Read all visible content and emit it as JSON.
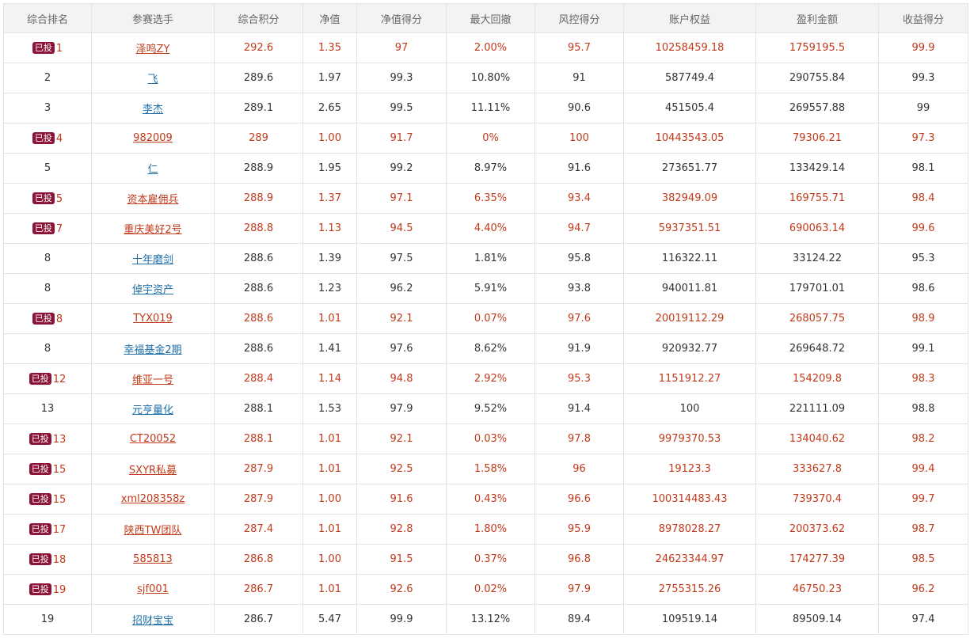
{
  "columns": [
    "综合排名",
    "参赛选手",
    "综合积分",
    "净值",
    "净值得分",
    "最大回撤",
    "风控得分",
    "账户权益",
    "盈利金额",
    "收益得分"
  ],
  "badge_label": "已投",
  "rows": [
    {
      "badge": true,
      "rank": "1",
      "player": "泽鸣ZY",
      "score": "292.6",
      "nav": "1.35",
      "nav_score": "97",
      "max_drawdown": "2.00%",
      "risk_score": "95.7",
      "equity": "10258459.18",
      "profit": "1759195.5",
      "return_score": "99.9"
    },
    {
      "badge": false,
      "rank": "2",
      "player": "飞",
      "score": "289.6",
      "nav": "1.97",
      "nav_score": "99.3",
      "max_drawdown": "10.80%",
      "risk_score": "91",
      "equity": "587749.4",
      "profit": "290755.84",
      "return_score": "99.3"
    },
    {
      "badge": false,
      "rank": "3",
      "player": "李杰",
      "score": "289.1",
      "nav": "2.65",
      "nav_score": "99.5",
      "max_drawdown": "11.11%",
      "risk_score": "90.6",
      "equity": "451505.4",
      "profit": "269557.88",
      "return_score": "99"
    },
    {
      "badge": true,
      "rank": "4",
      "player": "982009",
      "score": "289",
      "nav": "1.00",
      "nav_score": "91.7",
      "max_drawdown": "0%",
      "risk_score": "100",
      "equity": "10443543.05",
      "profit": "79306.21",
      "return_score": "97.3"
    },
    {
      "badge": false,
      "rank": "5",
      "player": "仁",
      "score": "288.9",
      "nav": "1.95",
      "nav_score": "99.2",
      "max_drawdown": "8.97%",
      "risk_score": "91.6",
      "equity": "273651.77",
      "profit": "133429.14",
      "return_score": "98.1"
    },
    {
      "badge": true,
      "rank": "5",
      "player": "资本雇佣兵",
      "score": "288.9",
      "nav": "1.37",
      "nav_score": "97.1",
      "max_drawdown": "6.35%",
      "risk_score": "93.4",
      "equity": "382949.09",
      "profit": "169755.71",
      "return_score": "98.4"
    },
    {
      "badge": true,
      "rank": "7",
      "player": "重庆美好2号",
      "score": "288.8",
      "nav": "1.13",
      "nav_score": "94.5",
      "max_drawdown": "4.40%",
      "risk_score": "94.7",
      "equity": "5937351.51",
      "profit": "690063.14",
      "return_score": "99.6"
    },
    {
      "badge": false,
      "rank": "8",
      "player": "十年磨剑",
      "score": "288.6",
      "nav": "1.39",
      "nav_score": "97.5",
      "max_drawdown": "1.81%",
      "risk_score": "95.8",
      "equity": "116322.11",
      "profit": "33124.22",
      "return_score": "95.3"
    },
    {
      "badge": false,
      "rank": "8",
      "player": "倬宇资产",
      "score": "288.6",
      "nav": "1.23",
      "nav_score": "96.2",
      "max_drawdown": "5.91%",
      "risk_score": "93.8",
      "equity": "940011.81",
      "profit": "179701.01",
      "return_score": "98.6"
    },
    {
      "badge": true,
      "rank": "8",
      "player": "TYX019",
      "score": "288.6",
      "nav": "1.01",
      "nav_score": "92.1",
      "max_drawdown": "0.07%",
      "risk_score": "97.6",
      "equity": "20019112.29",
      "profit": "268057.75",
      "return_score": "98.9"
    },
    {
      "badge": false,
      "rank": "8",
      "player": "幸福基金2期",
      "score": "288.6",
      "nav": "1.41",
      "nav_score": "97.6",
      "max_drawdown": "8.62%",
      "risk_score": "91.9",
      "equity": "920932.77",
      "profit": "269648.72",
      "return_score": "99.1"
    },
    {
      "badge": true,
      "rank": "12",
      "player": "维亚一号",
      "score": "288.4",
      "nav": "1.14",
      "nav_score": "94.8",
      "max_drawdown": "2.92%",
      "risk_score": "95.3",
      "equity": "1151912.27",
      "profit": "154209.8",
      "return_score": "98.3"
    },
    {
      "badge": false,
      "rank": "13",
      "player": "元亨量化",
      "score": "288.1",
      "nav": "1.53",
      "nav_score": "97.9",
      "max_drawdown": "9.52%",
      "risk_score": "91.4",
      "equity": "100",
      "profit": "221111.09",
      "return_score": "98.8"
    },
    {
      "badge": true,
      "rank": "13",
      "player": "CT20052",
      "score": "288.1",
      "nav": "1.01",
      "nav_score": "92.1",
      "max_drawdown": "0.03%",
      "risk_score": "97.8",
      "equity": "9979370.53",
      "profit": "134040.62",
      "return_score": "98.2"
    },
    {
      "badge": true,
      "rank": "15",
      "player": "SXYR私募",
      "score": "287.9",
      "nav": "1.01",
      "nav_score": "92.5",
      "max_drawdown": "1.58%",
      "risk_score": "96",
      "equity": "19123.3",
      "profit": "333627.8",
      "return_score": "99.4"
    },
    {
      "badge": true,
      "rank": "15",
      "player": "xml208358z",
      "score": "287.9",
      "nav": "1.00",
      "nav_score": "91.6",
      "max_drawdown": "0.43%",
      "risk_score": "96.6",
      "equity": "100314483.43",
      "profit": "739370.4",
      "return_score": "99.7"
    },
    {
      "badge": true,
      "rank": "17",
      "player": "陕西TW团队",
      "score": "287.4",
      "nav": "1.01",
      "nav_score": "92.8",
      "max_drawdown": "1.80%",
      "risk_score": "95.9",
      "equity": "8978028.27",
      "profit": "200373.62",
      "return_score": "98.7"
    },
    {
      "badge": true,
      "rank": "18",
      "player": "585813",
      "score": "286.8",
      "nav": "1.00",
      "nav_score": "91.5",
      "max_drawdown": "0.37%",
      "risk_score": "96.8",
      "equity": "24623344.97",
      "profit": "174277.39",
      "return_score": "98.5"
    },
    {
      "badge": true,
      "rank": "19",
      "player": "sjf001",
      "score": "286.7",
      "nav": "1.01",
      "nav_score": "92.6",
      "max_drawdown": "0.02%",
      "risk_score": "97.9",
      "equity": "2755315.26",
      "profit": "46750.23",
      "return_score": "96.2"
    },
    {
      "badge": false,
      "rank": "19",
      "player": "招财宝宝",
      "score": "286.7",
      "nav": "5.47",
      "nav_score": "99.9",
      "max_drawdown": "13.12%",
      "risk_score": "89.4",
      "equity": "109519.14",
      "profit": "89509.14",
      "return_score": "97.4"
    }
  ],
  "colors": {
    "header_bg": "#f3f3f3",
    "border": "#e3e3e3",
    "invested_text": "#c03a1b",
    "normal_link": "#1f6fa8",
    "badge_bg": "#8a1538"
  }
}
